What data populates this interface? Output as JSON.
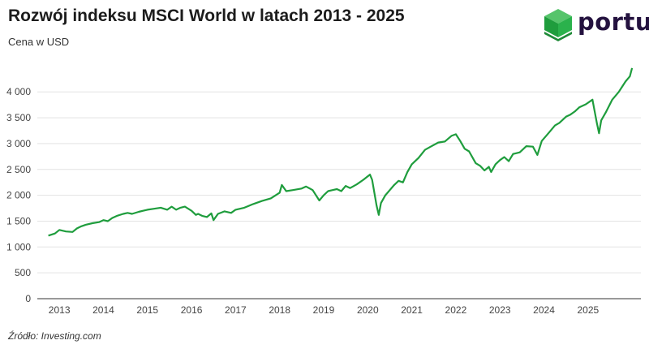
{
  "header": {
    "title": "Rozwój indeksu MSCI World w latach 2013 - 2025",
    "subtitle": "Cena w USD",
    "brand": "portu"
  },
  "footer": {
    "source": "Źródło: Investing.com"
  },
  "colors": {
    "line": "#1f9d3d",
    "grid": "#e3e3e3",
    "axis": "#333333",
    "logo_green": "#2fb34a"
  },
  "icons": {
    "logo": "portu-green-cube-icon"
  },
  "chart_data": {
    "type": "line",
    "title": "Rozwój indeksu MSCI World w latach 2013 - 2025",
    "subtitle": "Cena w USD",
    "xlabel": "",
    "ylabel": "",
    "xlim": [
      2012.5,
      2026.2
    ],
    "ylim": [
      0,
      4600
    ],
    "grid": true,
    "legend": "none",
    "x_ticks": [
      "2013",
      "2014",
      "2015",
      "2016",
      "2017",
      "2018",
      "2019",
      "2020",
      "2021",
      "2022",
      "2023",
      "2024",
      "2025"
    ],
    "y_ticks": [
      {
        "value": 0,
        "label": "0"
      },
      {
        "value": 500,
        "label": "500"
      },
      {
        "value": 1000,
        "label": "1 000"
      },
      {
        "value": 1500,
        "label": "1 500"
      },
      {
        "value": 2000,
        "label": "2 000"
      },
      {
        "value": 2500,
        "label": "2 500"
      },
      {
        "value": 3000,
        "label": "3 000"
      },
      {
        "value": 3500,
        "label": "3 500"
      },
      {
        "value": 4000,
        "label": "4 000"
      }
    ],
    "series": [
      {
        "x": [
          2012.75,
          2012.9,
          2013.0,
          2013.15,
          2013.3,
          2013.4,
          2013.5,
          2013.6,
          2013.75,
          2013.9,
          2014.0,
          2014.1,
          2014.2,
          2014.3,
          2014.45,
          2014.55,
          2014.65,
          2014.8,
          2014.9,
          2015.0,
          2015.15,
          2015.3,
          2015.45,
          2015.55,
          2015.65,
          2015.75,
          2015.85,
          2016.0,
          2016.1,
          2016.15,
          2016.25,
          2016.35,
          2016.45,
          2016.5,
          2016.6,
          2016.75,
          2016.9,
          2017.0,
          2017.2,
          2017.4,
          2017.6,
          2017.8,
          2018.0,
          2018.05,
          2018.15,
          2018.3,
          2018.5,
          2018.6,
          2018.75,
          2018.9,
          2019.0,
          2019.1,
          2019.2,
          2019.3,
          2019.4,
          2019.5,
          2019.6,
          2019.75,
          2019.9,
          2020.05,
          2020.1,
          2020.2,
          2020.25,
          2020.3,
          2020.4,
          2020.5,
          2020.6,
          2020.7,
          2020.8,
          2020.9,
          2021.0,
          2021.15,
          2021.3,
          2021.45,
          2021.6,
          2021.75,
          2021.9,
          2022.0,
          2022.1,
          2022.2,
          2022.3,
          2022.45,
          2022.55,
          2022.65,
          2022.75,
          2022.8,
          2022.9,
          2023.0,
          2023.1,
          2023.2,
          2023.3,
          2023.45,
          2023.6,
          2023.75,
          2023.85,
          2023.95,
          2024.1,
          2024.25,
          2024.35,
          2024.5,
          2024.6,
          2024.7,
          2024.8,
          2024.95,
          2025.1,
          2025.2,
          2025.25,
          2025.3,
          2025.4,
          2025.55,
          2025.7,
          2025.85,
          2025.95,
          2026.0
        ],
        "values": [
          1220,
          1260,
          1330,
          1300,
          1290,
          1360,
          1400,
          1430,
          1460,
          1480,
          1520,
          1500,
          1560,
          1600,
          1640,
          1660,
          1640,
          1680,
          1700,
          1720,
          1740,
          1760,
          1720,
          1780,
          1720,
          1760,
          1780,
          1700,
          1620,
          1640,
          1600,
          1580,
          1650,
          1520,
          1640,
          1690,
          1660,
          1720,
          1760,
          1830,
          1890,
          1940,
          2050,
          2200,
          2080,
          2100,
          2130,
          2170,
          2100,
          1900,
          2000,
          2080,
          2100,
          2120,
          2080,
          2180,
          2140,
          2210,
          2300,
          2400,
          2300,
          1800,
          1620,
          1850,
          2000,
          2100,
          2200,
          2280,
          2250,
          2450,
          2600,
          2720,
          2880,
          2950,
          3020,
          3040,
          3150,
          3180,
          3050,
          2900,
          2850,
          2620,
          2570,
          2480,
          2550,
          2450,
          2600,
          2680,
          2740,
          2660,
          2800,
          2830,
          2950,
          2940,
          2780,
          3050,
          3200,
          3350,
          3400,
          3520,
          3560,
          3620,
          3700,
          3760,
          3850,
          3400,
          3200,
          3450,
          3600,
          3850,
          4000,
          4200,
          4300,
          4460
        ]
      }
    ]
  }
}
